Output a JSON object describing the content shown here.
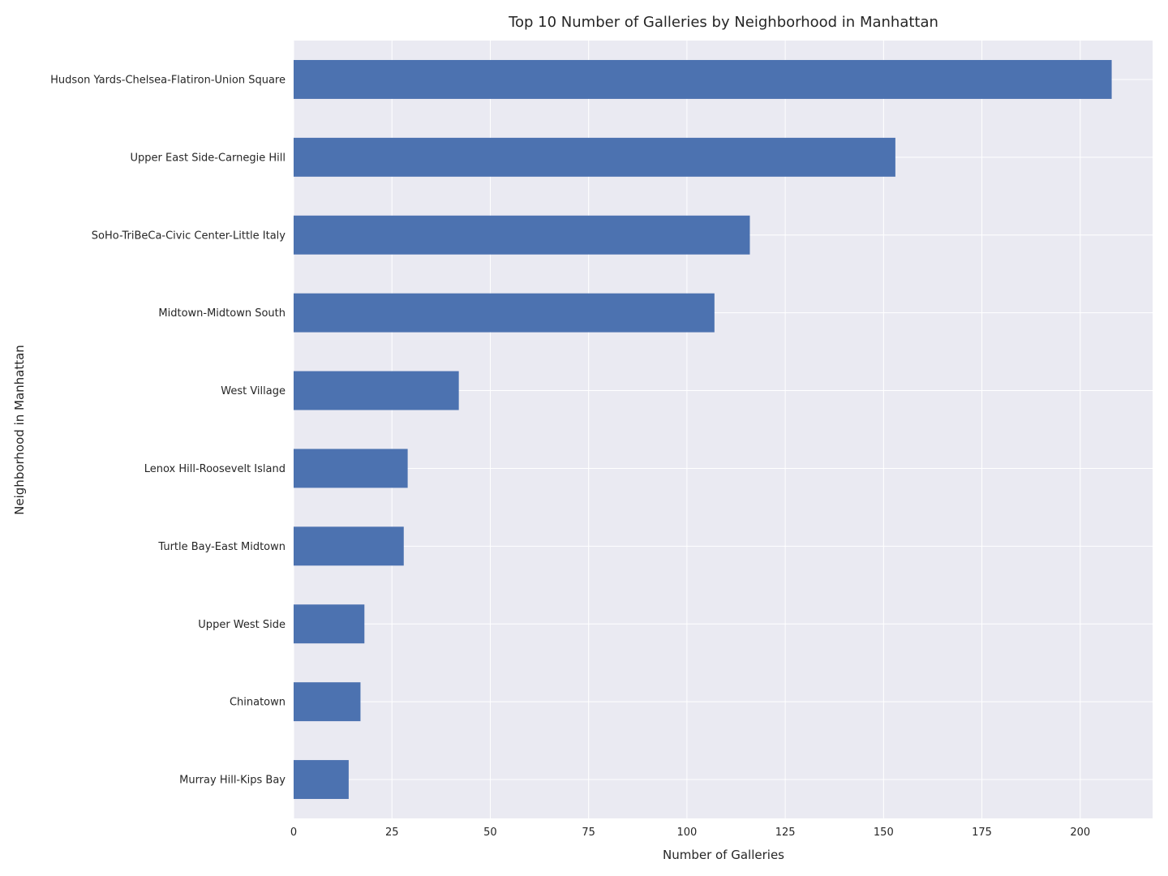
{
  "chart_data": {
    "type": "bar",
    "orientation": "horizontal",
    "title": "Top 10 Number of Galleries by Neighborhood in Manhattan",
    "xlabel": "Number of Galleries",
    "ylabel": "Neighborhood in Manhattan",
    "categories": [
      "Hudson Yards-Chelsea-Flatiron-Union Square",
      "Upper East Side-Carnegie Hill",
      "SoHo-TriBeCa-Civic Center-Little Italy",
      "Midtown-Midtown South",
      "West Village",
      "Lenox Hill-Roosevelt Island",
      "Turtle Bay-East Midtown",
      "Upper West Side",
      "Chinatown",
      "Murray Hill-Kips Bay"
    ],
    "values": [
      208,
      153,
      116,
      107,
      42,
      29,
      28,
      18,
      17,
      14
    ],
    "xlim": [
      0,
      218.4
    ],
    "xticks": [
      0,
      25,
      50,
      75,
      100,
      125,
      150,
      175,
      200
    ],
    "grid": true,
    "bar_color": "#4c72b0",
    "plot_background": "#eaeaf2",
    "grid_color": "#ffffff"
  }
}
